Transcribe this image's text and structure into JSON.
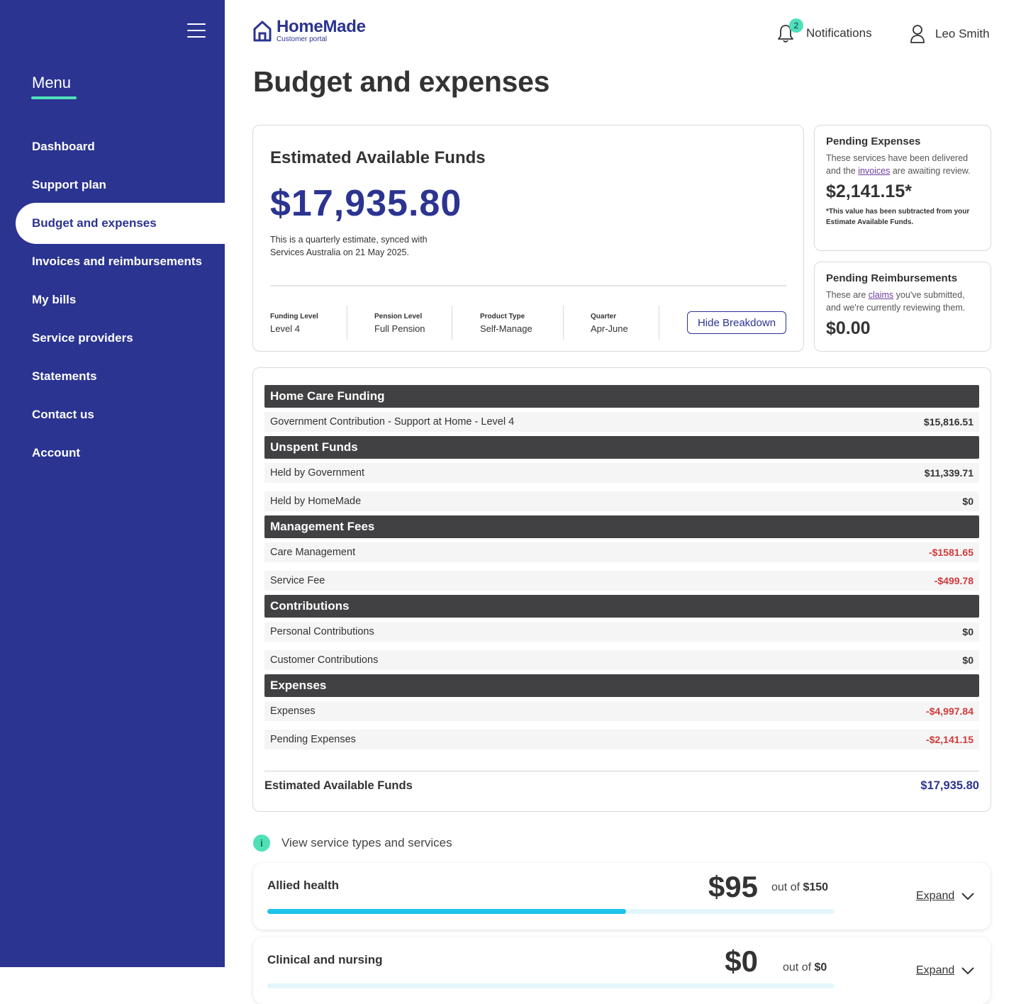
{
  "sidebar": {
    "menu_heading": "Menu",
    "items": [
      {
        "label": "Dashboard",
        "active": false
      },
      {
        "label": "Support plan",
        "active": false
      },
      {
        "label": "Budget and expenses",
        "active": true
      },
      {
        "label": "Invoices and reimbursements",
        "active": false
      },
      {
        "label": "My bills",
        "active": false
      },
      {
        "label": "Service providers",
        "active": false
      },
      {
        "label": "Statements",
        "active": false
      },
      {
        "label": "Contact us",
        "active": false
      },
      {
        "label": "Account",
        "active": false
      }
    ]
  },
  "header": {
    "logo_title": "HomeMade",
    "logo_subtitle": "Customer portal",
    "notifications_label": "Notifications",
    "notifications_count": "2",
    "user_name": "Leo Smith"
  },
  "page_title": "Budget and expenses",
  "funds": {
    "heading": "Estimated Available Funds",
    "amount": "$17,935.80",
    "note": "This is a quarterly estimate, synced with Services Australia on 21 May 2025.",
    "meta": [
      {
        "label": "Funding Level",
        "value": "Level 4"
      },
      {
        "label": "Pension Level",
        "value": "Full Pension"
      },
      {
        "label": "Product Type",
        "value": "Self-Manage"
      },
      {
        "label": "Quarter",
        "value": "Apr-June"
      }
    ],
    "hide_button": "Hide Breakdown"
  },
  "pending_expenses": {
    "title": "Pending Expenses",
    "desc_before": "These services have been delivered and the ",
    "desc_link": "invoices",
    "desc_after": " are awaiting review.",
    "amount": "$2,141.15*",
    "footnote": "*This value has been subtracted from your Estimate Available Funds."
  },
  "pending_reimbursements": {
    "title": "Pending Reimbursements",
    "desc_before": "These are ",
    "desc_link": "claims",
    "desc_after": " you've submitted, and we're currently reviewing them.",
    "amount": "$0.00"
  },
  "breakdown": {
    "home_care": {
      "header": "Home Care Funding",
      "rows": [
        {
          "label": "Government Contribution - Support at Home - Level 4",
          "value": "$15,816.51"
        }
      ]
    },
    "unspent": {
      "header": "Unspent Funds",
      "rows": [
        {
          "label": "Held by Government",
          "value": "$11,339.71"
        },
        {
          "label": "Held by HomeMade",
          "value": "$0"
        }
      ]
    },
    "management": {
      "header": "Management Fees",
      "rows": [
        {
          "label": "Care Management",
          "value": "-$1581.65"
        },
        {
          "label": "Service Fee",
          "value": "-$499.78"
        }
      ]
    },
    "contributions": {
      "header": "Contributions",
      "rows": [
        {
          "label": "Personal Contributions",
          "value": "$0"
        },
        {
          "label": "Customer Contributions",
          "value": "$0"
        }
      ]
    },
    "expenses": {
      "header": "Expenses",
      "rows": [
        {
          "label": "Expenses",
          "value": "-$4,997.84"
        },
        {
          "label": "Pending Expenses",
          "value": "-$2,141.15"
        }
      ]
    },
    "total_label": "Estimated Available Funds",
    "total_value": "$17,935.80"
  },
  "services": {
    "info_label": "View service types and services",
    "expand_label": "Expand",
    "out_of_label": "out of",
    "items": [
      {
        "name": "Allied health",
        "amount": "$95",
        "total": "$150",
        "progress": 0.633
      },
      {
        "name": "Clinical and nursing",
        "amount": "$0",
        "total": "$0",
        "progress": 0
      }
    ]
  },
  "colors": {
    "brand": "#2b3490",
    "accent": "#4fe0b8",
    "negative": "#d03a3a",
    "progress": "#1ec3ea"
  }
}
